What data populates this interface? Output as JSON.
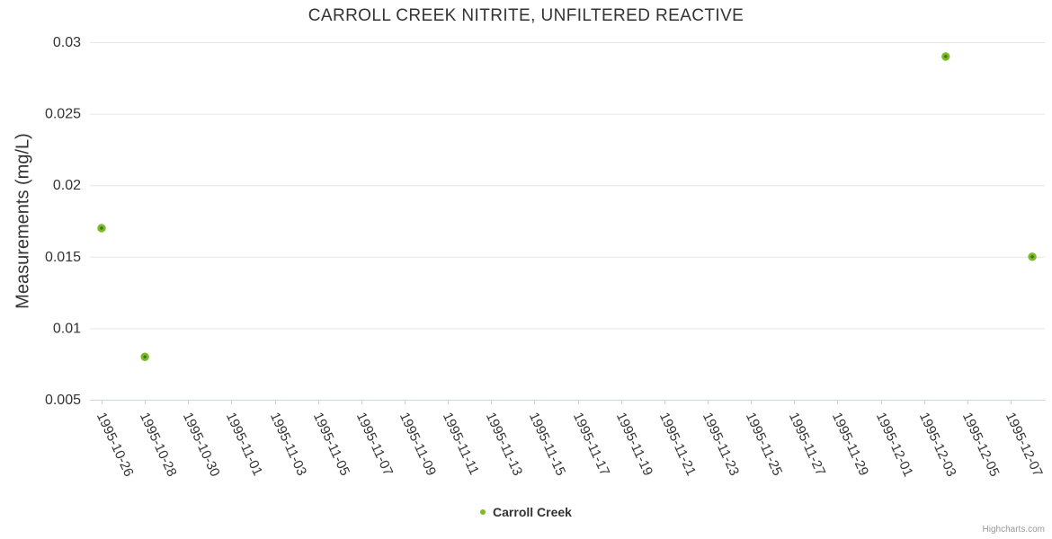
{
  "credits": "Highcharts.com",
  "colors": {
    "marker_fill": "#3a750d",
    "marker_stroke": "#7bbb26",
    "grid_line": "#e6e6e6",
    "axis_line": "#ccd6eb",
    "title_text": "#333333",
    "tick_text": "#333333",
    "credits_text": "#999999"
  },
  "chart_data": {
    "type": "scatter",
    "title": "CARROLL CREEK NITRITE, UNFILTERED REACTIVE",
    "xlabel": "",
    "ylabel": "Measurements (mg/L)",
    "grid": true,
    "legend_position": "bottom",
    "ylim": [
      0.005,
      0.03
    ],
    "y_tick_labels": [
      "0.005",
      "0.01",
      "0.015",
      "0.02",
      "0.025",
      "0.03"
    ],
    "x_tick_labels": [
      "1995-10-26",
      "1995-10-28",
      "1995-10-30",
      "1995-11-01",
      "1995-11-03",
      "1995-11-05",
      "1995-11-07",
      "1995-11-09",
      "1995-11-11",
      "1995-11-13",
      "1995-11-15",
      "1995-11-17",
      "1995-11-19",
      "1995-11-21",
      "1995-11-23",
      "1995-11-25",
      "1995-11-27",
      "1995-11-29",
      "1995-12-01",
      "1995-12-03",
      "1995-12-05",
      "1995-12-07"
    ],
    "series": [
      {
        "name": "Carroll Creek",
        "points": [
          {
            "date": "1995-10-26",
            "value": 0.017
          },
          {
            "date": "1995-10-28",
            "value": 0.008
          },
          {
            "date": "1995-12-04",
            "value": 0.029
          },
          {
            "date": "1995-12-08",
            "value": 0.015
          }
        ]
      }
    ]
  }
}
